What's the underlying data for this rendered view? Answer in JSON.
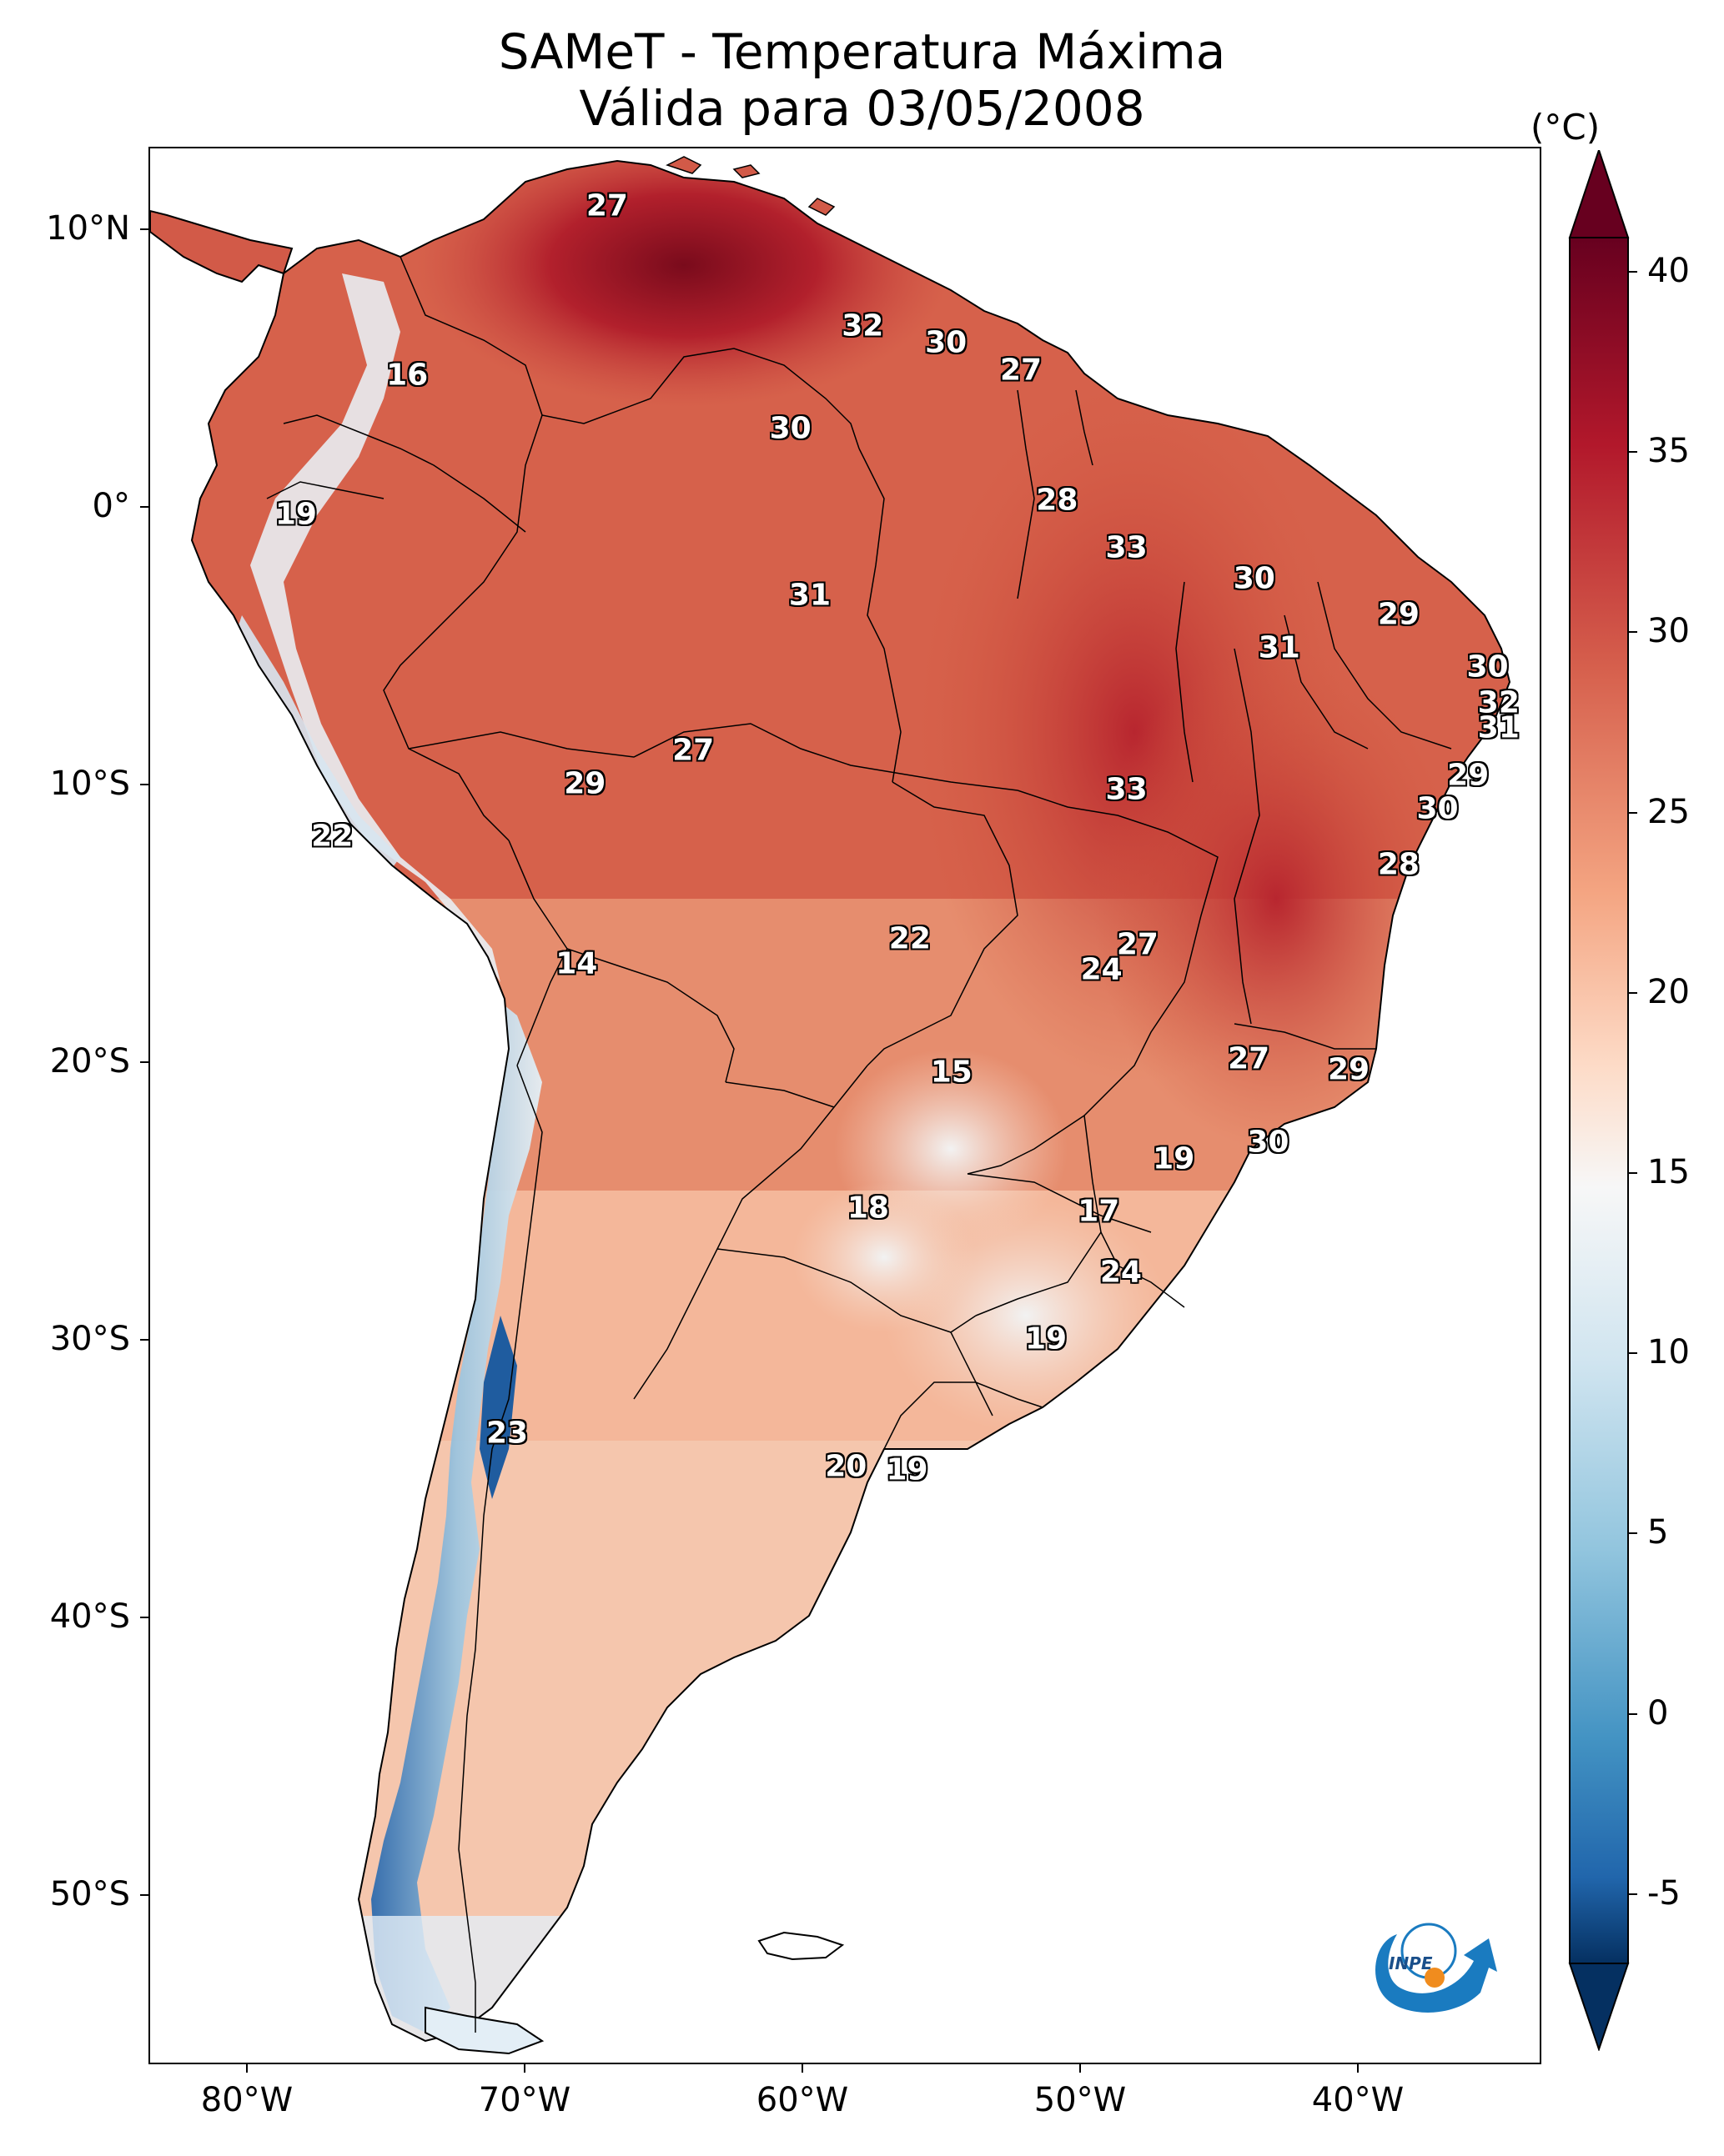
{
  "title": {
    "line1": "SAMeT - Temperatura Máxima",
    "line2": "Válida para 03/05/2008"
  },
  "axes": {
    "lat_labels": [
      "10°N",
      "0°",
      "10°S",
      "20°S",
      "30°S",
      "40°S",
      "50°S"
    ],
    "lon_labels": [
      "80°W",
      "70°W",
      "60°W",
      "50°W",
      "40°W"
    ]
  },
  "colorbar": {
    "unit": "(°C)",
    "ticks": [
      "40",
      "35",
      "30",
      "25",
      "20",
      "15",
      "10",
      "5",
      "0",
      "-5"
    ],
    "min": -5,
    "max": 40,
    "colormap": "RdBu_r",
    "extend": "both"
  },
  "map_values": [
    {
      "value": "27",
      "lat": 10.8,
      "lon": -67.0
    },
    {
      "value": "32",
      "lat": 6.5,
      "lon": -57.8
    },
    {
      "value": "30",
      "lat": 5.9,
      "lon": -54.8
    },
    {
      "value": "27",
      "lat": 4.9,
      "lon": -52.1
    },
    {
      "value": "16",
      "lat": 4.7,
      "lon": -74.2
    },
    {
      "value": "30",
      "lat": 2.8,
      "lon": -60.4
    },
    {
      "value": "28",
      "lat": 0.2,
      "lon": -50.8
    },
    {
      "value": "19",
      "lat": -0.3,
      "lon": -78.2
    },
    {
      "value": "33",
      "lat": -1.5,
      "lon": -48.3
    },
    {
      "value": "30",
      "lat": -2.6,
      "lon": -43.7
    },
    {
      "value": "31",
      "lat": -3.2,
      "lon": -59.7
    },
    {
      "value": "29",
      "lat": -3.9,
      "lon": -38.5
    },
    {
      "value": "31",
      "lat": -5.1,
      "lon": -42.8
    },
    {
      "value": "30",
      "lat": -5.8,
      "lon": -35.3
    },
    {
      "value": "32",
      "lat": -7.1,
      "lon": -34.9
    },
    {
      "value": "31",
      "lat": -8.0,
      "lon": -34.9
    },
    {
      "value": "27",
      "lat": -8.8,
      "lon": -63.9
    },
    {
      "value": "29",
      "lat": -9.7,
      "lon": -36.0
    },
    {
      "value": "29",
      "lat": -10.0,
      "lon": -67.8
    },
    {
      "value": "33",
      "lat": -10.2,
      "lon": -48.3
    },
    {
      "value": "30",
      "lat": -10.9,
      "lon": -37.1
    },
    {
      "value": "22",
      "lat": -11.9,
      "lon": -76.9
    },
    {
      "value": "28",
      "lat": -12.9,
      "lon": -38.5
    },
    {
      "value": "22",
      "lat": -15.6,
      "lon": -56.1
    },
    {
      "value": "27",
      "lat": -15.8,
      "lon": -47.9
    },
    {
      "value": "24",
      "lat": -16.7,
      "lon": -49.2
    },
    {
      "value": "14",
      "lat": -16.5,
      "lon": -68.1
    },
    {
      "value": "27",
      "lat": -19.9,
      "lon": -43.9
    },
    {
      "value": "15",
      "lat": -20.4,
      "lon": -54.6
    },
    {
      "value": "29",
      "lat": -20.3,
      "lon": -40.3
    },
    {
      "value": "30",
      "lat": -22.9,
      "lon": -43.2
    },
    {
      "value": "19",
      "lat": -23.5,
      "lon": -46.6
    },
    {
      "value": "18",
      "lat": -25.3,
      "lon": -57.6
    },
    {
      "value": "17",
      "lat": -25.4,
      "lon": -49.3
    },
    {
      "value": "24",
      "lat": -27.6,
      "lon": -48.5
    },
    {
      "value": "19",
      "lat": -30.0,
      "lon": -51.2
    },
    {
      "value": "23",
      "lat": -33.4,
      "lon": -70.6
    },
    {
      "value": "20",
      "lat": -34.6,
      "lon": -58.4
    },
    {
      "value": "19",
      "lat": -34.7,
      "lon": -56.2
    }
  ],
  "logo": {
    "text": "INPE"
  }
}
